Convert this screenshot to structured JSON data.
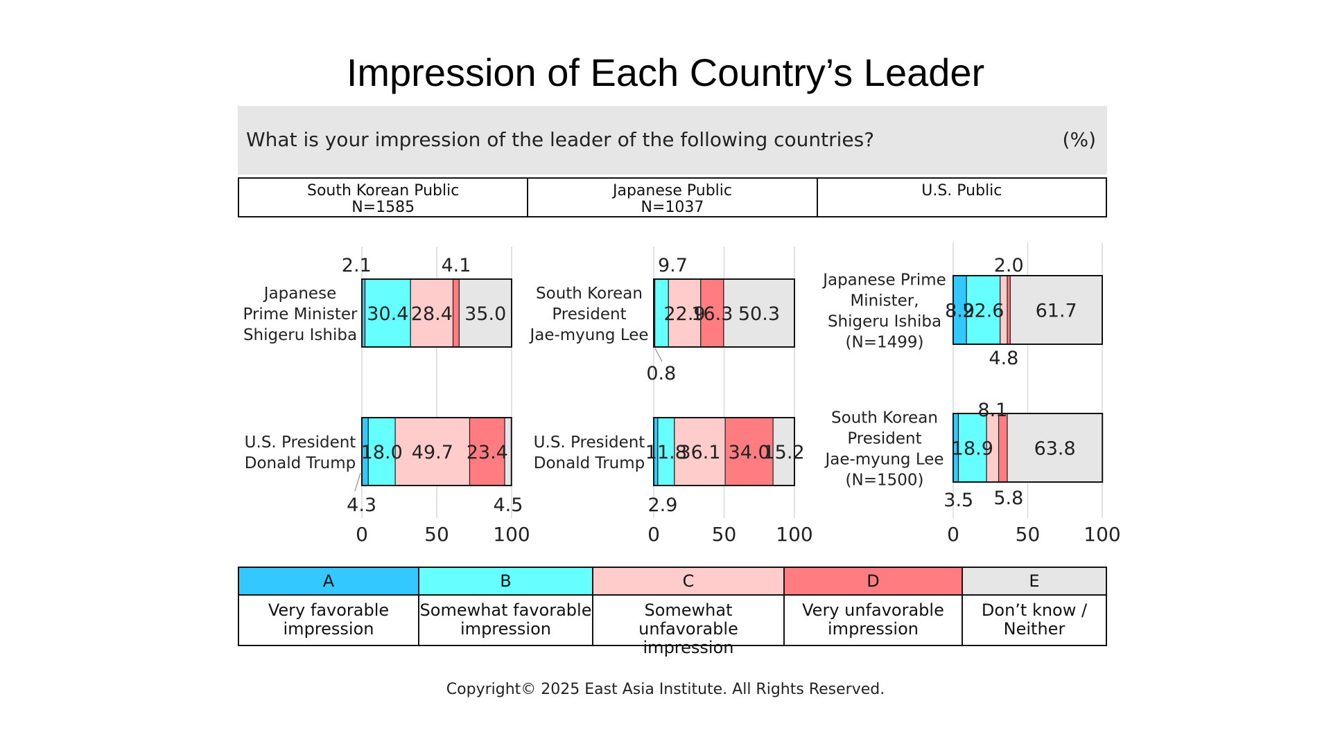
{
  "title": "Impression of Each Country’s Leader",
  "question": "What is your impression of the leader of the following countries?",
  "unit": "(%)",
  "panels": [
    {
      "header": "South Korean Public",
      "n": "N=1585"
    },
    {
      "header": "Japanese Public",
      "n": "N=1037"
    },
    {
      "header": "U.S. Public",
      "n": ""
    }
  ],
  "legend": [
    {
      "code": "A",
      "label": "Very favorable impression",
      "label_lines": [
        "Very favorable",
        "impression"
      ],
      "color": "#33C8FF"
    },
    {
      "code": "B",
      "label": "Somewhat favorable impression",
      "label_lines": [
        "Somewhat favorable",
        "impression"
      ],
      "color": "#66FFFF"
    },
    {
      "code": "C",
      "label": "Somewhat unfavorable impression",
      "label_lines": [
        "Somewhat unfavorable",
        "impression"
      ],
      "color": "#FFCCCC"
    },
    {
      "code": "D",
      "label": "Very unfavorable impression",
      "label_lines": [
        "Very unfavorable",
        "impression"
      ],
      "color": "#FF7C80"
    },
    {
      "code": "E",
      "label": "Don’t know / Neither",
      "label_lines": [
        "Don’t know /",
        "Neither"
      ],
      "color": "#E6E6E6"
    }
  ],
  "copyright": "Copyright© 2025 East Asia Institute. All Rights Reserved.",
  "chart_data": [
    {
      "type": "bar",
      "orientation": "horizontal",
      "stacked": true,
      "panel": "South Korean Public",
      "categories": [
        {
          "label": "Japanese Prime Minister Shigeru Ishiba",
          "label_lines": [
            "Japanese",
            "Prime Minister",
            "Shigeru Ishiba"
          ],
          "values": [
            2.1,
            30.4,
            28.4,
            4.1,
            35.0
          ]
        },
        {
          "label": "U.S. President Donald Trump",
          "label_lines": [
            "U.S. President",
            "Donald Trump"
          ],
          "values": [
            4.3,
            18.0,
            49.7,
            23.4,
            4.5
          ]
        }
      ],
      "series": [
        "A",
        "B",
        "C",
        "D",
        "E"
      ],
      "xlim": [
        0,
        100
      ],
      "xticks": [
        0,
        50,
        100
      ],
      "grid": true
    },
    {
      "type": "bar",
      "orientation": "horizontal",
      "stacked": true,
      "panel": "Japanese Public",
      "categories": [
        {
          "label": "South Korean President Jae-myung Lee",
          "label_lines": [
            "South Korean",
            "President",
            "Jae-myung Lee"
          ],
          "values": [
            0.8,
            9.7,
            22.9,
            16.3,
            50.3
          ]
        },
        {
          "label": "U.S. President Donald Trump",
          "label_lines": [
            "U.S. President",
            "Donald Trump"
          ],
          "values": [
            2.9,
            11.8,
            36.1,
            34.0,
            15.2
          ]
        }
      ],
      "series": [
        "A",
        "B",
        "C",
        "D",
        "E"
      ],
      "xlim": [
        0,
        100
      ],
      "xticks": [
        0,
        50,
        100
      ],
      "grid": true
    },
    {
      "type": "bar",
      "orientation": "horizontal",
      "stacked": true,
      "panel": "U.S. Public",
      "categories": [
        {
          "label": "Japanese Prime Minister, Shigeru Ishiba (N=1499)",
          "label_lines": [
            "Japanese Prime",
            "Minister,",
            "Shigeru Ishiba",
            "(N=1499)"
          ],
          "values": [
            8.9,
            22.6,
            4.8,
            2.0,
            61.7
          ]
        },
        {
          "label": "South Korean President Jae-myung Lee (N=1500)",
          "label_lines": [
            "South Korean",
            "President",
            "Jae-myung Lee",
            "(N=1500)"
          ],
          "values": [
            3.5,
            18.9,
            8.1,
            5.8,
            63.8
          ]
        }
      ],
      "series": [
        "A",
        "B",
        "C",
        "D",
        "E"
      ],
      "xlim": [
        0,
        100
      ],
      "xticks": [
        0,
        50,
        100
      ],
      "grid": true
    }
  ]
}
